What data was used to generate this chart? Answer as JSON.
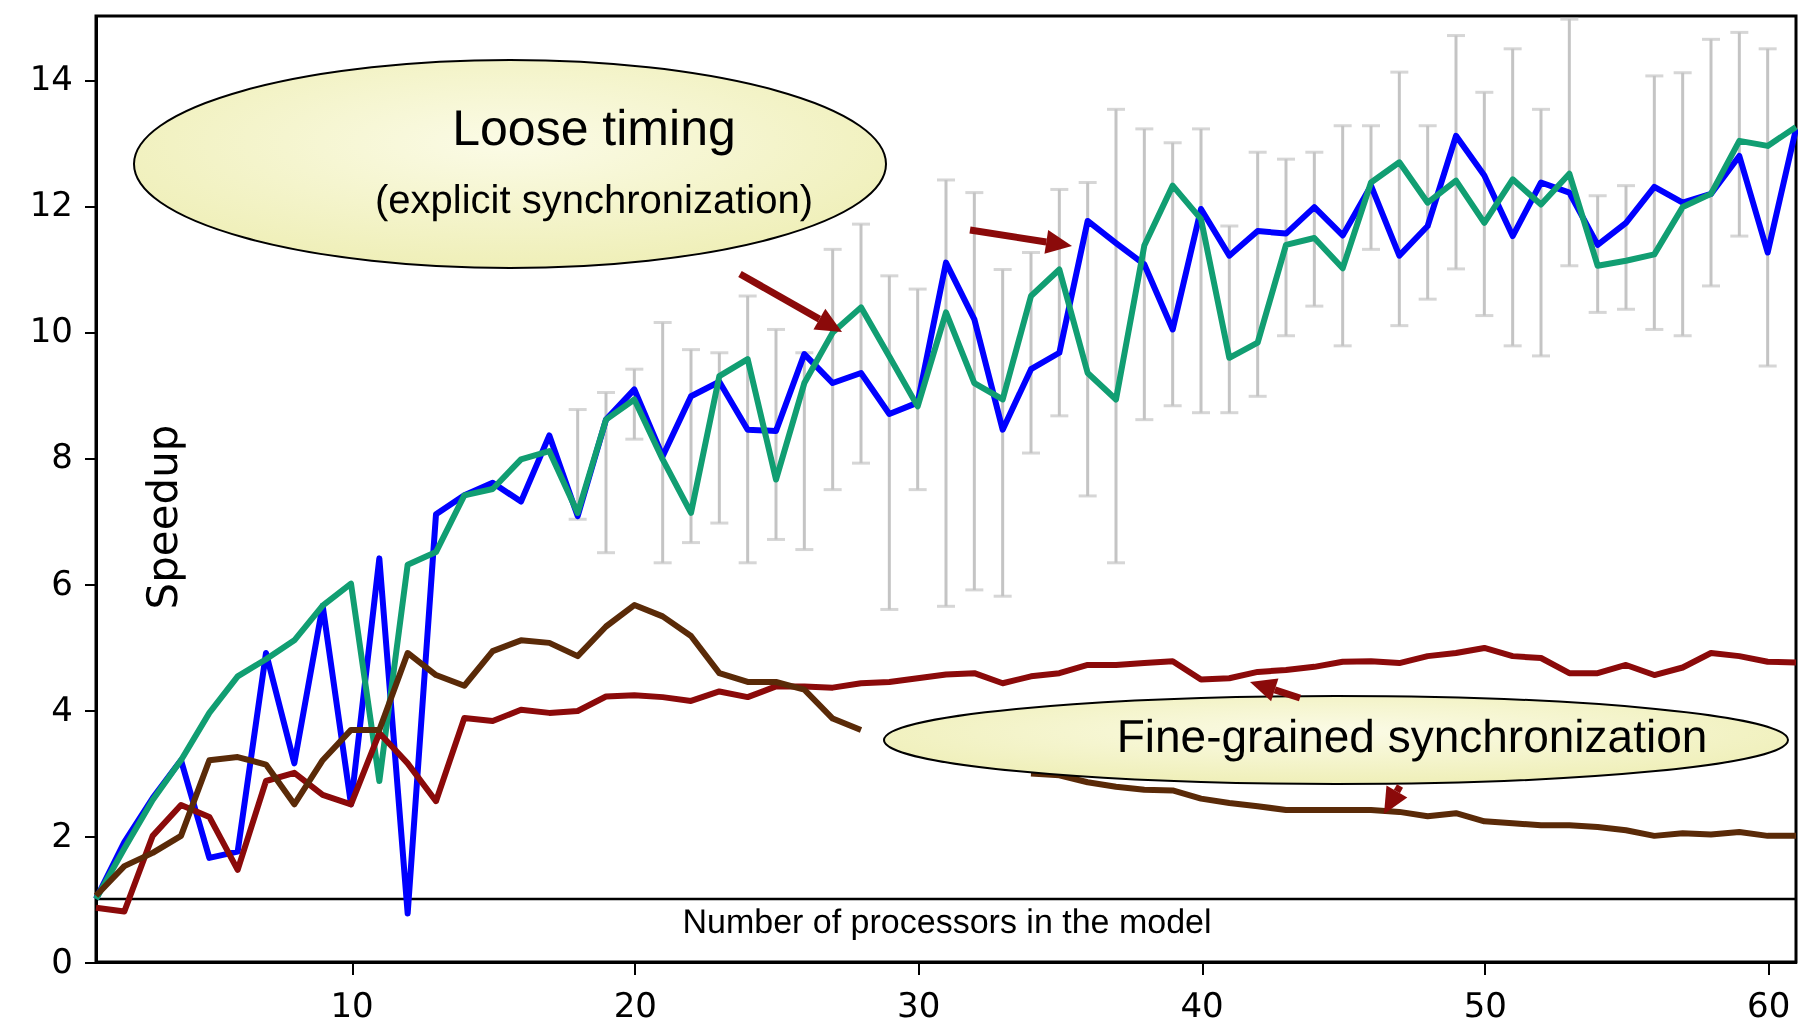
{
  "chart_data": {
    "type": "line",
    "xlabel": "Number of processors in the model",
    "ylabel": "Speedup",
    "x": [
      1,
      2,
      3,
      4,
      5,
      6,
      7,
      8,
      9,
      10,
      11,
      12,
      13,
      14,
      15,
      16,
      17,
      18,
      19,
      20,
      21,
      22,
      23,
      24,
      25,
      26,
      27,
      28,
      29,
      30,
      31,
      32,
      33,
      34,
      35,
      36,
      37,
      38,
      39,
      40,
      41,
      42,
      43,
      44,
      45,
      46,
      47,
      48,
      49,
      50,
      51,
      52,
      53,
      54,
      55,
      56,
      57,
      58,
      59,
      60,
      61
    ],
    "xlim": [
      1,
      61
    ],
    "xticks": [
      10,
      20,
      30,
      40,
      50,
      60
    ],
    "ylim": [
      0,
      15
    ],
    "yticks": [
      0,
      2,
      4,
      6,
      8,
      10,
      12,
      14
    ],
    "grid": false,
    "marker": "none",
    "line_style": "solid",
    "ref_lines": [
      {
        "axis": "y",
        "value": 1,
        "color": "#000000"
      }
    ],
    "annotations": [
      "Loose timing",
      "(explicit synchronization)",
      "Fine-grained synchronization"
    ],
    "series": [
      {
        "color": "#0000ff",
        "values": [
          1.0,
          1.9,
          2.6,
          3.2,
          1.65,
          1.75,
          4.9,
          3.15,
          5.65,
          2.5,
          6.4,
          0.77,
          7.1,
          7.4,
          7.6,
          7.3,
          8.35,
          7.07,
          8.6,
          9.08,
          8.02,
          8.97,
          9.2,
          8.44,
          8.42,
          9.64,
          9.18,
          9.34,
          8.69,
          8.87,
          11.09,
          10.19,
          8.44,
          9.4,
          9.66,
          11.75,
          11.4,
          11.06,
          10.03,
          11.94,
          11.2,
          11.59,
          11.55,
          11.97,
          11.52,
          12.31,
          11.2,
          11.67,
          13.1,
          12.47,
          11.51,
          12.36,
          12.2,
          11.37,
          11.72,
          12.29,
          12.04,
          12.18,
          12.78,
          11.25,
          13.21
        ],
        "errors": [
          null,
          null,
          null,
          null,
          null,
          null,
          null,
          null,
          null,
          null,
          null,
          null,
          null,
          null,
          null,
          null,
          null,
          [
            7.02,
            8.76
          ],
          [
            6.49,
            9.03
          ],
          [
            8.29,
            9.4
          ],
          [
            6.33,
            10.14
          ],
          [
            6.65,
            9.71
          ],
          [
            6.96,
            9.66
          ],
          [
            6.33,
            10.56
          ],
          [
            6.7,
            10.03
          ],
          [
            6.54,
            9.66
          ],
          [
            7.49,
            11.3
          ],
          [
            7.91,
            11.7
          ],
          [
            5.59,
            10.88
          ],
          [
            7.49,
            10.67
          ],
          [
            5.64,
            12.4
          ],
          [
            5.9,
            12.2
          ],
          [
            5.8,
            10.98
          ],
          [
            8.07,
            11.25
          ],
          [
            8.66,
            12.25
          ],
          [
            7.39,
            12.36
          ],
          [
            6.33,
            13.52
          ],
          [
            8.6,
            13.21
          ],
          [
            8.82,
            12.99
          ],
          [
            8.71,
            13.21
          ],
          [
            8.71,
            11.67
          ],
          [
            8.97,
            12.84
          ],
          [
            9.93,
            12.73
          ],
          [
            10.4,
            12.84
          ],
          [
            9.77,
            13.26
          ],
          [
            11.3,
            13.26
          ],
          [
            10.09,
            14.11
          ],
          [
            10.51,
            13.26
          ],
          [
            10.99,
            14.69
          ],
          [
            10.25,
            13.79
          ],
          [
            9.77,
            14.48
          ],
          [
            9.61,
            13.52
          ],
          [
            11.04,
            14.95
          ],
          [
            10.3,
            12.15
          ],
          [
            10.35,
            12.31
          ],
          [
            10.03,
            14.05
          ],
          [
            9.93,
            14.1
          ],
          [
            10.72,
            14.63
          ],
          [
            11.51,
            14.74
          ],
          [
            9.45,
            14.48
          ],
          null
        ]
      },
      {
        "color": "#119e72",
        "values": [
          1.0,
          1.8,
          2.57,
          3.2,
          3.95,
          4.53,
          4.8,
          5.1,
          5.65,
          6.0,
          2.87,
          6.3,
          6.5,
          7.4,
          7.5,
          7.97,
          8.1,
          7.12,
          8.6,
          8.92,
          7.97,
          7.12,
          9.29,
          9.56,
          7.65,
          9.18,
          9.98,
          10.38,
          9.6,
          8.81,
          10.3,
          9.18,
          8.92,
          10.56,
          10.98,
          9.34,
          8.92,
          11.36,
          12.31,
          11.78,
          9.58,
          9.82,
          11.37,
          11.48,
          11.0,
          12.36,
          12.68,
          12.04,
          12.39,
          11.72,
          12.41,
          12.01,
          12.5,
          11.04,
          11.12,
          11.22,
          11.97,
          12.18,
          13.02,
          12.94,
          13.24
        ]
      },
      {
        "color": "#8b0a0a",
        "values": [
          0.86,
          0.8,
          2.0,
          2.49,
          2.3,
          1.46,
          2.87,
          3.0,
          2.65,
          2.5,
          3.63,
          3.15,
          2.55,
          3.87,
          3.82,
          4.0,
          3.95,
          3.98,
          4.21,
          4.23,
          4.2,
          4.14,
          4.29,
          4.2,
          4.37,
          4.37,
          4.35,
          4.42,
          4.44,
          4.5,
          4.56,
          4.58,
          4.42,
          4.53,
          4.58,
          4.71,
          4.71,
          4.74,
          4.77,
          4.48,
          4.5,
          4.6,
          4.63,
          4.68,
          4.76,
          4.77,
          4.74,
          4.85,
          4.9,
          4.98,
          4.85,
          4.82,
          4.58,
          4.58,
          4.71,
          4.55,
          4.67,
          4.9,
          4.85,
          4.76,
          4.75
        ]
      },
      {
        "color": "#5a2a08",
        "values": [
          1.05,
          1.52,
          1.73,
          2.0,
          3.2,
          3.25,
          3.13,
          2.5,
          3.2,
          3.68,
          3.68,
          4.9,
          4.55,
          4.38,
          4.93,
          5.1,
          5.06,
          4.85,
          5.32,
          5.66,
          5.48,
          5.17,
          4.58,
          4.44,
          4.44,
          4.32,
          3.86,
          3.68,
          null,
          null,
          null,
          null,
          null,
          2.99,
          2.96,
          2.85,
          2.78,
          2.73,
          2.72,
          2.59,
          2.52,
          2.47,
          2.41,
          2.41,
          2.41,
          2.41,
          2.38,
          2.31,
          2.36,
          2.23,
          2.2,
          2.17,
          2.17,
          2.14,
          2.09,
          2.0,
          2.04,
          2.02,
          2.06,
          2.0,
          2.0
        ]
      }
    ]
  }
}
